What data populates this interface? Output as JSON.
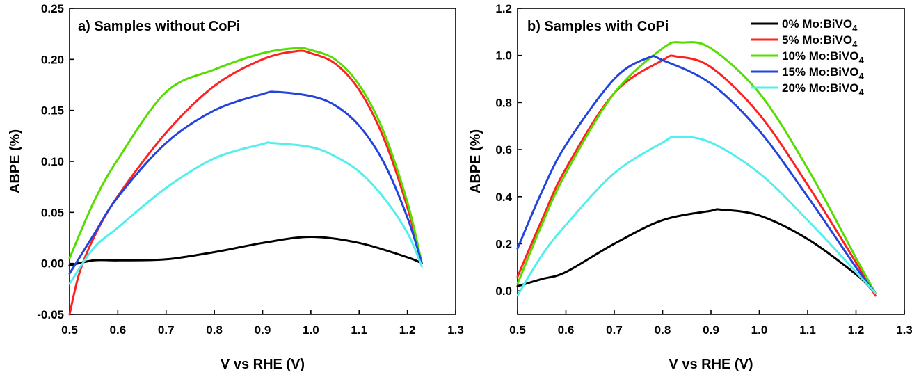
{
  "chart_data": [
    {
      "type": "line",
      "title": "a) Samples without CoPi",
      "xlabel": "V vs RHE (V)",
      "ylabel": "ABPE (%)",
      "xlim": [
        0.5,
        1.3
      ],
      "ylim": [
        -0.05,
        0.25
      ],
      "xticks": [
        "0.5",
        "0.6",
        "0.7",
        "0.8",
        "0.9",
        "1.0",
        "1.1",
        "1.2",
        "1.3"
      ],
      "yticks": [
        "-0.05",
        "0.00",
        "0.05",
        "0.10",
        "0.15",
        "0.20",
        "0.25"
      ],
      "series": [
        {
          "color": "#000000",
          "x": [
            0.5,
            0.55,
            0.6,
            0.7,
            0.8,
            0.9,
            1.0,
            1.1,
            1.2,
            1.23
          ],
          "y": [
            -0.002,
            0.003,
            0.003,
            0.004,
            0.011,
            0.02,
            0.026,
            0.02,
            0.006,
            0.0
          ]
        },
        {
          "color": "#ff2020",
          "x": [
            0.5,
            0.52,
            0.55,
            0.6,
            0.7,
            0.8,
            0.9,
            0.97,
            1.0,
            1.05,
            1.1,
            1.15,
            1.2,
            1.23
          ],
          "y": [
            -0.05,
            -0.01,
            0.025,
            0.066,
            0.128,
            0.174,
            0.2,
            0.208,
            0.206,
            0.196,
            0.17,
            0.124,
            0.055,
            0.0
          ]
        },
        {
          "color": "#55dd00",
          "x": [
            0.5,
            0.55,
            0.6,
            0.7,
            0.8,
            0.9,
            0.97,
            1.0,
            1.05,
            1.1,
            1.15,
            1.2,
            1.23
          ],
          "y": [
            0.005,
            0.06,
            0.102,
            0.168,
            0.19,
            0.206,
            0.211,
            0.209,
            0.2,
            0.175,
            0.13,
            0.06,
            0.0
          ]
        },
        {
          "color": "#2244dd",
          "x": [
            0.5,
            0.55,
            0.6,
            0.7,
            0.8,
            0.9,
            0.93,
            1.0,
            1.05,
            1.1,
            1.15,
            1.2,
            1.23
          ],
          "y": [
            -0.01,
            0.028,
            0.065,
            0.118,
            0.15,
            0.166,
            0.168,
            0.164,
            0.155,
            0.135,
            0.1,
            0.045,
            0.0
          ]
        },
        {
          "color": "#55eeee",
          "x": [
            0.5,
            0.55,
            0.6,
            0.7,
            0.8,
            0.9,
            0.92,
            1.0,
            1.05,
            1.1,
            1.15,
            1.2,
            1.23
          ],
          "y": [
            -0.02,
            0.015,
            0.035,
            0.074,
            0.103,
            0.117,
            0.118,
            0.114,
            0.105,
            0.09,
            0.065,
            0.03,
            -0.003
          ]
        }
      ]
    },
    {
      "type": "line",
      "title": "b) Samples with CoPi",
      "xlabel": "V vs RHE (V)",
      "ylabel": "ABPE (%)",
      "xlim": [
        0.5,
        1.3
      ],
      "ylim": [
        -0.1,
        1.2
      ],
      "xticks": [
        "0.5",
        "0.6",
        "0.7",
        "0.8",
        "0.9",
        "1.0",
        "1.1",
        "1.2",
        "1.3"
      ],
      "yticks": [
        "0.0",
        "0.2",
        "0.4",
        "0.6",
        "0.8",
        "1.0",
        "1.2"
      ],
      "legend": {
        "position": "top-right"
      },
      "series": [
        {
          "name_base": "0% Mo:BiVO",
          "name_sub": "4",
          "color": "#000000",
          "x": [
            0.5,
            0.55,
            0.6,
            0.7,
            0.8,
            0.9,
            0.92,
            1.0,
            1.1,
            1.2,
            1.235
          ],
          "y": [
            0.02,
            0.05,
            0.08,
            0.2,
            0.3,
            0.34,
            0.345,
            0.32,
            0.22,
            0.07,
            0.0
          ]
        },
        {
          "name_base": "5% Mo:BiVO",
          "name_sub": "4",
          "color": "#ff2020",
          "x": [
            0.5,
            0.55,
            0.6,
            0.7,
            0.8,
            0.83,
            0.9,
            1.0,
            1.1,
            1.2,
            1.24
          ],
          "y": [
            0.06,
            0.3,
            0.52,
            0.84,
            0.98,
            0.995,
            0.95,
            0.75,
            0.45,
            0.12,
            -0.02
          ]
        },
        {
          "name_base": "10% Mo:BiVO",
          "name_sub": "4",
          "color": "#55dd00",
          "x": [
            0.5,
            0.55,
            0.6,
            0.7,
            0.8,
            0.84,
            0.9,
            1.0,
            1.1,
            1.2,
            1.24
          ],
          "y": [
            0.03,
            0.28,
            0.5,
            0.84,
            1.03,
            1.055,
            1.03,
            0.84,
            0.52,
            0.14,
            -0.01
          ]
        },
        {
          "name_base": "15% Mo:BiVO",
          "name_sub": "4",
          "color": "#2244dd",
          "x": [
            0.5,
            0.55,
            0.6,
            0.7,
            0.77,
            0.8,
            0.9,
            1.0,
            1.1,
            1.2,
            1.24
          ],
          "y": [
            0.18,
            0.42,
            0.62,
            0.9,
            0.99,
            0.98,
            0.88,
            0.68,
            0.4,
            0.1,
            -0.01
          ]
        },
        {
          "name_base": "20% Mo:BiVO",
          "name_sub": "4",
          "color": "#55eeee",
          "x": [
            0.5,
            0.55,
            0.6,
            0.7,
            0.8,
            0.83,
            0.9,
            1.0,
            1.1,
            1.2,
            1.24
          ],
          "y": [
            -0.02,
            0.15,
            0.28,
            0.5,
            0.63,
            0.655,
            0.63,
            0.5,
            0.3,
            0.08,
            -0.01
          ]
        }
      ]
    }
  ]
}
